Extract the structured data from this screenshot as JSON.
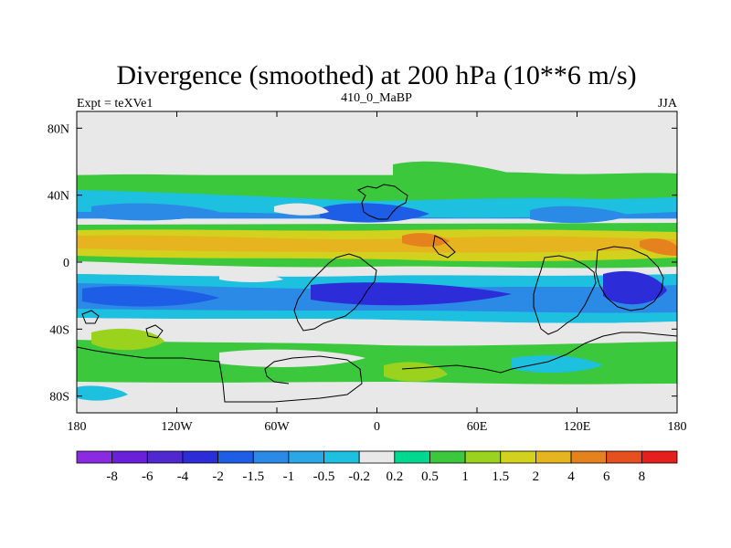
{
  "chart_data": {
    "type": "heatmap",
    "title": "Divergence (smoothed) at 200 hPa (10**6 m/s)",
    "left_label": "Expt = teXVe1",
    "center_label": "410_0_MaBP",
    "right_label": "JJA",
    "x_ticks": [
      {
        "value": -180,
        "label": "180"
      },
      {
        "value": -120,
        "label": "120W"
      },
      {
        "value": -60,
        "label": "60W"
      },
      {
        "value": 0,
        "label": "0"
      },
      {
        "value": 60,
        "label": "60E"
      },
      {
        "value": 120,
        "label": "120E"
      },
      {
        "value": 180,
        "label": "180"
      }
    ],
    "y_ticks": [
      {
        "value": 80,
        "label": "80N"
      },
      {
        "value": 40,
        "label": "40N"
      },
      {
        "value": 0,
        "label": "0"
      },
      {
        "value": -40,
        "label": "40S"
      },
      {
        "value": -80,
        "label": "80S"
      }
    ],
    "xlim": [
      -180,
      180
    ],
    "ylim": [
      -90,
      90
    ],
    "colorbar": {
      "colors": [
        "#8a2be2",
        "#6a1fd8",
        "#5028d0",
        "#2c2cd8",
        "#1e5ee6",
        "#2a8ae6",
        "#2aa8e6",
        "#1ec0e0",
        "#e8e8e8",
        "#00d890",
        "#3cc83c",
        "#9ad21e",
        "#d2d21e",
        "#e6b41e",
        "#e6821e",
        "#e6501e",
        "#e61e1e"
      ],
      "labels": [
        "-8",
        "-6",
        "-4",
        "-2",
        "-1.5",
        "-1",
        "-0.5",
        "-0.2",
        "0.2",
        "0.5",
        "1",
        "1.5",
        "2",
        "4",
        "6",
        "8"
      ]
    },
    "bands": [
      {
        "lat": [
          60,
          90
        ],
        "level": "-0.2 to 0.2",
        "color": "#e8e8e8"
      },
      {
        "lat": [
          36,
          52
        ],
        "level": "0.5 to 1",
        "color": "#3cc83c"
      },
      {
        "lat": [
          26,
          34
        ],
        "level": "-1.5 to -1",
        "color": "#2a8ae6"
      },
      {
        "lat": [
          4,
          20
        ],
        "level": "2 to 4",
        "color": "#e6b41e"
      },
      {
        "lat": [
          -8,
          2
        ],
        "level": "0.5 to 1",
        "color": "#3cc83c"
      },
      {
        "lat": [
          -32,
          -12
        ],
        "level": "-2 to -1.5",
        "color": "#1e5ee6"
      },
      {
        "lat": [
          -50,
          -35
        ],
        "level": "-0.2 to 0.2",
        "color": "#e8e8e8"
      },
      {
        "lat": [
          -70,
          -52
        ],
        "level": "1 to 1.5",
        "color": "#9ad21e"
      },
      {
        "lat": [
          -90,
          -75
        ],
        "level": "-0.2 to 0.2",
        "color": "#e8e8e8"
      }
    ]
  }
}
